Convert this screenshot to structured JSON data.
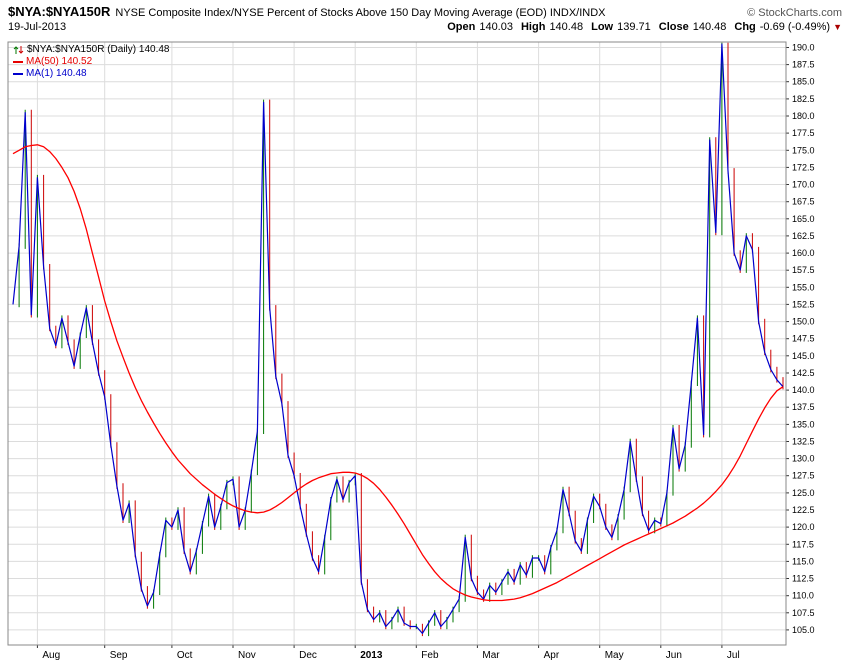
{
  "header": {
    "symbol": "$NYA:$NYA150R",
    "description": "NYSE Composite Index/NYSE Percent of Stocks Above 150 Day Moving Average (EOD) INDX/INDX",
    "copyright": "© StockCharts.com",
    "date": "19-Jul-2013"
  },
  "quote": {
    "open_label": "Open",
    "open_value": "140.03",
    "high_label": "High",
    "high_value": "140.48",
    "low_label": "Low",
    "low_value": "139.71",
    "close_label": "Close",
    "close_value": "140.48",
    "chg_label": "Chg",
    "chg_value": "-0.69 (-0.49%)",
    "chg_direction": "▼"
  },
  "legend": {
    "main_label": "$NYA:$NYA150R (Daily) 140.48",
    "ma50_label": "MA(50) 140.52",
    "ma1_label": "MA(1) 140.48"
  },
  "chart_data": {
    "type": "line",
    "title": "$NYA:$NYA150R (Daily) 140.48",
    "subtitle": "NYSE Composite Index/NYSE Percent of Stocks Above 150 Day Moving Average (EOD)",
    "period": "Jul 2012 - 19-Jul-2013",
    "grid": true,
    "legend_position": "top-left",
    "ylim": [
      102.8,
      190.8
    ],
    "yticks": [
      105.0,
      107.5,
      110.0,
      112.5,
      115.0,
      117.5,
      120.0,
      122.5,
      125.0,
      127.5,
      130.0,
      132.5,
      135.0,
      137.5,
      140.0,
      142.5,
      145.0,
      147.5,
      150.0,
      152.5,
      155.0,
      157.5,
      160.0,
      162.5,
      165.0,
      167.5,
      170.0,
      172.5,
      175.0,
      177.5,
      180.0,
      182.5,
      185.0,
      187.5,
      190.0
    ],
    "x_boundaries": [
      {
        "label": "Aug",
        "index": 4,
        "bold": false
      },
      {
        "label": "Sep",
        "index": 15,
        "bold": false
      },
      {
        "label": "Oct",
        "index": 26,
        "bold": false
      },
      {
        "label": "Nov",
        "index": 36,
        "bold": false
      },
      {
        "label": "Dec",
        "index": 46,
        "bold": false
      },
      {
        "label": "2013",
        "index": 56,
        "bold": true
      },
      {
        "label": "Feb",
        "index": 66,
        "bold": false
      },
      {
        "label": "Mar",
        "index": 76,
        "bold": false
      },
      {
        "label": "Apr",
        "index": 86,
        "bold": false
      },
      {
        "label": "May",
        "index": 96,
        "bold": false
      },
      {
        "label": "Jun",
        "index": 106,
        "bold": false
      },
      {
        "label": "Jul",
        "index": 116,
        "bold": false
      }
    ],
    "colors": {
      "price_line": "#0000cc",
      "ma50_line": "#ff0000",
      "bar_up": "#007700",
      "bar_down": "#cc0000",
      "grid": "#dcdcdc",
      "border": "#888888",
      "axis_text": "#000000"
    },
    "series": [
      {
        "name": "$NYA:$NYA150R Close / MA(1)",
        "color": "#0000cc",
        "last_value": 140.48,
        "values": [
          152.5,
          161,
          180.5,
          151,
          171,
          158,
          149,
          146.5,
          150.5,
          147,
          143.5,
          148,
          152,
          147,
          142.5,
          139,
          132,
          126,
          121,
          123.5,
          116,
          111,
          108.5,
          110.5,
          116,
          121,
          120,
          122.5,
          116.5,
          113.5,
          116.5,
          120.5,
          124.5,
          120,
          123,
          126.5,
          127,
          120,
          122.5,
          128,
          134,
          182,
          152,
          142,
          138,
          130.5,
          127.5,
          123,
          119,
          115.5,
          113.5,
          118.5,
          124,
          127,
          124,
          126.5,
          127.5,
          112,
          108,
          106.5,
          107.5,
          105.5,
          106.5,
          108,
          106,
          105.5,
          105.5,
          104.5,
          106,
          107.5,
          105.5,
          106.5,
          108,
          109.5,
          118.5,
          112.5,
          110.5,
          109.5,
          111.5,
          110.5,
          112,
          113.5,
          112,
          114.5,
          113,
          115.5,
          115.5,
          113.5,
          117,
          119.5,
          125.5,
          122,
          118,
          116.5,
          121,
          124.5,
          123,
          120,
          118.5,
          121.5,
          125.5,
          132.5,
          127,
          122,
          119.5,
          121,
          120.5,
          125,
          134.5,
          128.5,
          132,
          141,
          150.5,
          133.5,
          176.5,
          163,
          190.5,
          172,
          160,
          157.5,
          162.5,
          160.5,
          150,
          145.5,
          143,
          141.5,
          140.5
        ]
      },
      {
        "name": "MA(50)",
        "color": "#ff0000",
        "last_value": 140.52,
        "values": [
          174.5,
          175,
          175.5,
          175.7,
          175.8,
          175.5,
          174.8,
          173.8,
          172.5,
          171,
          169,
          166.5,
          163.5,
          160,
          156.5,
          153,
          150,
          147.2,
          144.8,
          142.5,
          140.4,
          138.5,
          136.8,
          135.2,
          133.7,
          132.3,
          131,
          129.8,
          128.8,
          127.8,
          127,
          126.2,
          125.5,
          124.8,
          124.2,
          123.6,
          123.1,
          122.7,
          122.4,
          122.2,
          122.1,
          122.2,
          122.5,
          123,
          123.6,
          124.3,
          125,
          125.7,
          126.3,
          126.8,
          127.2,
          127.5,
          127.8,
          127.9,
          128,
          128,
          127.9,
          127.6,
          127.1,
          126.4,
          125.5,
          124.4,
          123.2,
          121.9,
          120.5,
          119,
          117.5,
          116,
          114.7,
          113.5,
          112.5,
          111.7,
          111,
          110.5,
          110.1,
          109.8,
          109.6,
          109.4,
          109.3,
          109.3,
          109.3,
          109.4,
          109.5,
          109.7,
          110,
          110.3,
          110.7,
          111.1,
          111.5,
          111.9,
          112.4,
          112.9,
          113.4,
          113.9,
          114.4,
          114.9,
          115.4,
          115.9,
          116.4,
          116.9,
          117.4,
          117.8,
          118.2,
          118.6,
          119,
          119.4,
          119.8,
          120.2,
          120.6,
          121.1,
          121.6,
          122.2,
          122.8,
          123.5,
          124.3,
          125.2,
          126.2,
          127.4,
          128.8,
          130.4,
          132.2,
          134,
          135.8,
          137.4,
          138.8,
          139.9,
          140.5
        ]
      }
    ]
  }
}
